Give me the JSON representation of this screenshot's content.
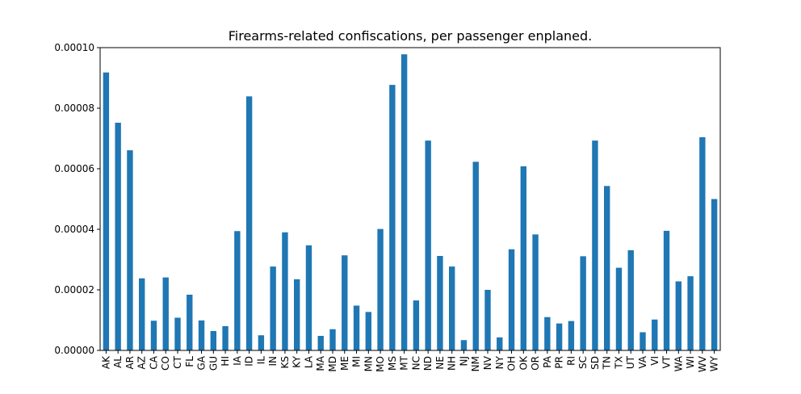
{
  "chart_data": {
    "type": "bar",
    "title": "Firearms-related confiscations, per passenger enplaned.",
    "xlabel": "",
    "ylabel": "",
    "categories": [
      "AK",
      "AL",
      "AR",
      "AZ",
      "CA",
      "CO",
      "CT",
      "FL",
      "GA",
      "GU",
      "HI",
      "IA",
      "ID",
      "IL",
      "IN",
      "KS",
      "KY",
      "LA",
      "MA",
      "MD",
      "ME",
      "MI",
      "MN",
      "MO",
      "MS",
      "MT",
      "NC",
      "ND",
      "NE",
      "NH",
      "NJ",
      "NM",
      "NV",
      "NY",
      "OH",
      "OK",
      "OR",
      "PA",
      "PR",
      "RI",
      "SC",
      "SD",
      "TN",
      "TX",
      "UT",
      "VA",
      "VI",
      "VT",
      "WA",
      "WI",
      "WV",
      "WY"
    ],
    "values": [
      9.18e-05,
      7.52e-05,
      6.61e-05,
      2.38e-05,
      9.8e-06,
      2.41e-05,
      1.08e-05,
      1.84e-05,
      9.9e-06,
      6.4e-06,
      8e-06,
      3.94e-05,
      8.39e-05,
      5e-06,
      2.77e-05,
      3.9e-05,
      2.35e-05,
      3.47e-05,
      4.8e-06,
      7e-06,
      3.14e-05,
      1.48e-05,
      1.27e-05,
      4.01e-05,
      8.77e-05,
      9.78e-05,
      1.65e-05,
      6.93e-05,
      3.12e-05,
      2.77e-05,
      3.4e-06,
      6.23e-05,
      2e-05,
      4.3e-06,
      3.34e-05,
      6.08e-05,
      3.83e-05,
      1.1e-05,
      8.9e-06,
      9.7e-06,
      3.11e-05,
      6.93e-05,
      5.43e-05,
      2.73e-05,
      3.31e-05,
      6e-06,
      1.02e-05,
      3.95e-05,
      2.28e-05,
      2.45e-05,
      7.04e-05,
      5e-05
    ],
    "ylim": [
      0,
      0.0001
    ],
    "yticks": [
      0,
      2e-05,
      4e-05,
      6e-05,
      8e-05,
      0.0001
    ],
    "ytick_labels": [
      "0.00000",
      "0.00002",
      "0.00004",
      "0.00006",
      "0.00008",
      "0.00010"
    ],
    "bar_color": "#1f77b4",
    "grid": false,
    "legend": "none"
  }
}
